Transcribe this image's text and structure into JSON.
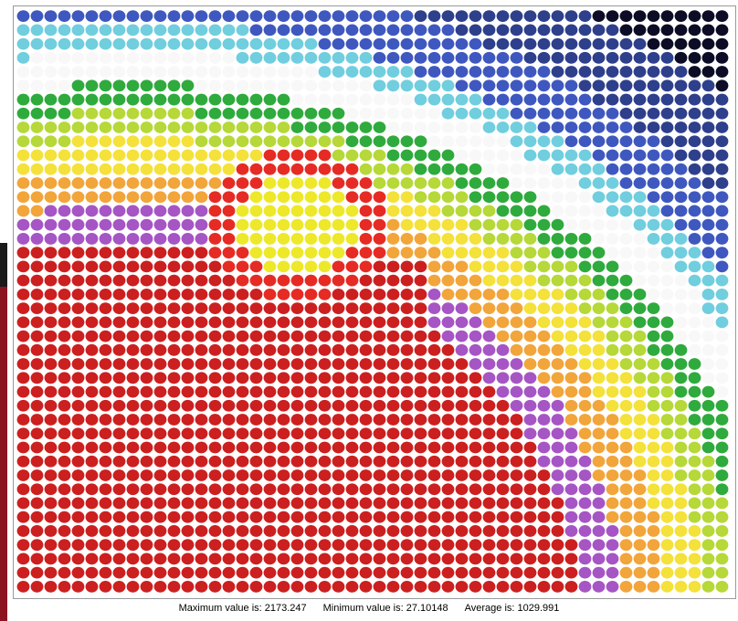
{
  "chart_data": {
    "type": "heatmap",
    "grid": {
      "columns": 52,
      "rows": 42
    },
    "hotspot": {
      "row": 15,
      "column": 20
    },
    "palette": [
      "#0c0c26",
      "#2e3f8c",
      "#3f58bf",
      "#70cede",
      "#f8f8f8",
      "#2faa3d",
      "#b6d838",
      "#f4e13a",
      "#f1a53a",
      "#a655c4",
      "#cc1f1f",
      "#e52b24",
      "#ede82a"
    ],
    "stats": {
      "max": "Maximum value is: 2173.247",
      "min": "Minimum value is: 27.10148",
      "avg": "Average is: 1029.991"
    }
  }
}
